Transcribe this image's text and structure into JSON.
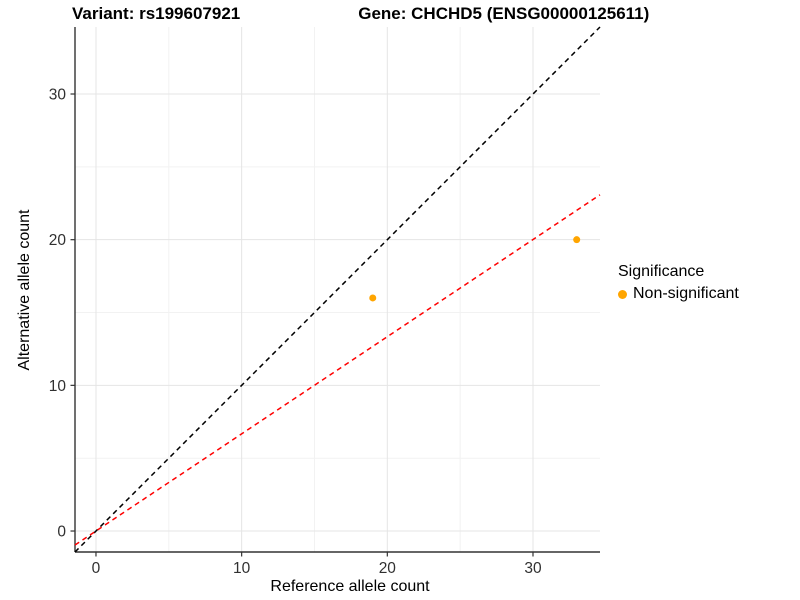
{
  "title": {
    "variant": "Variant: rs199607921",
    "gene": "Gene: CHCHD5 (ENSG00000125611)"
  },
  "axes": {
    "x_label": "Reference allele count",
    "y_label": "Alternative allele count"
  },
  "legend": {
    "title": "Significance",
    "items": [
      {
        "label": "Non-significant",
        "color": "#FFA500"
      }
    ]
  },
  "colors": {
    "point": "#FFA500",
    "identity_line": "#000000",
    "ratio_line": "#FF0000",
    "grid_major": "#E5E5E5",
    "grid_minor": "#F2F2F2",
    "axis": "#333333",
    "tick_label": "#303030"
  },
  "chart_data": {
    "type": "scatter",
    "title": "Variant: rs199607921   Gene: CHCHD5 (ENSG00000125611)",
    "xlabel": "Reference allele count",
    "ylabel": "Alternative allele count",
    "xlim": [
      -1.44,
      34.6
    ],
    "ylim": [
      -1.44,
      34.6
    ],
    "x_major_ticks": [
      0,
      10,
      20,
      30
    ],
    "y_major_ticks": [
      0,
      10,
      20,
      30
    ],
    "minor_ticks": [
      5,
      15,
      25,
      35
    ],
    "grid": true,
    "legend_position": "right",
    "point_color": "#FFA500",
    "point_radius": 3.5,
    "points": [
      {
        "x": 19,
        "y": 16,
        "series": "Non-significant"
      },
      {
        "x": 33,
        "y": 20,
        "series": "Non-significant"
      }
    ],
    "lines": [
      {
        "name": "identity-line",
        "slope": 1.0,
        "intercept": 0,
        "color": "#000000",
        "style": "dashed"
      },
      {
        "name": "ratio-line",
        "slope": 0.667,
        "intercept": 0,
        "color": "#FF0000",
        "style": "dashed"
      }
    ]
  }
}
